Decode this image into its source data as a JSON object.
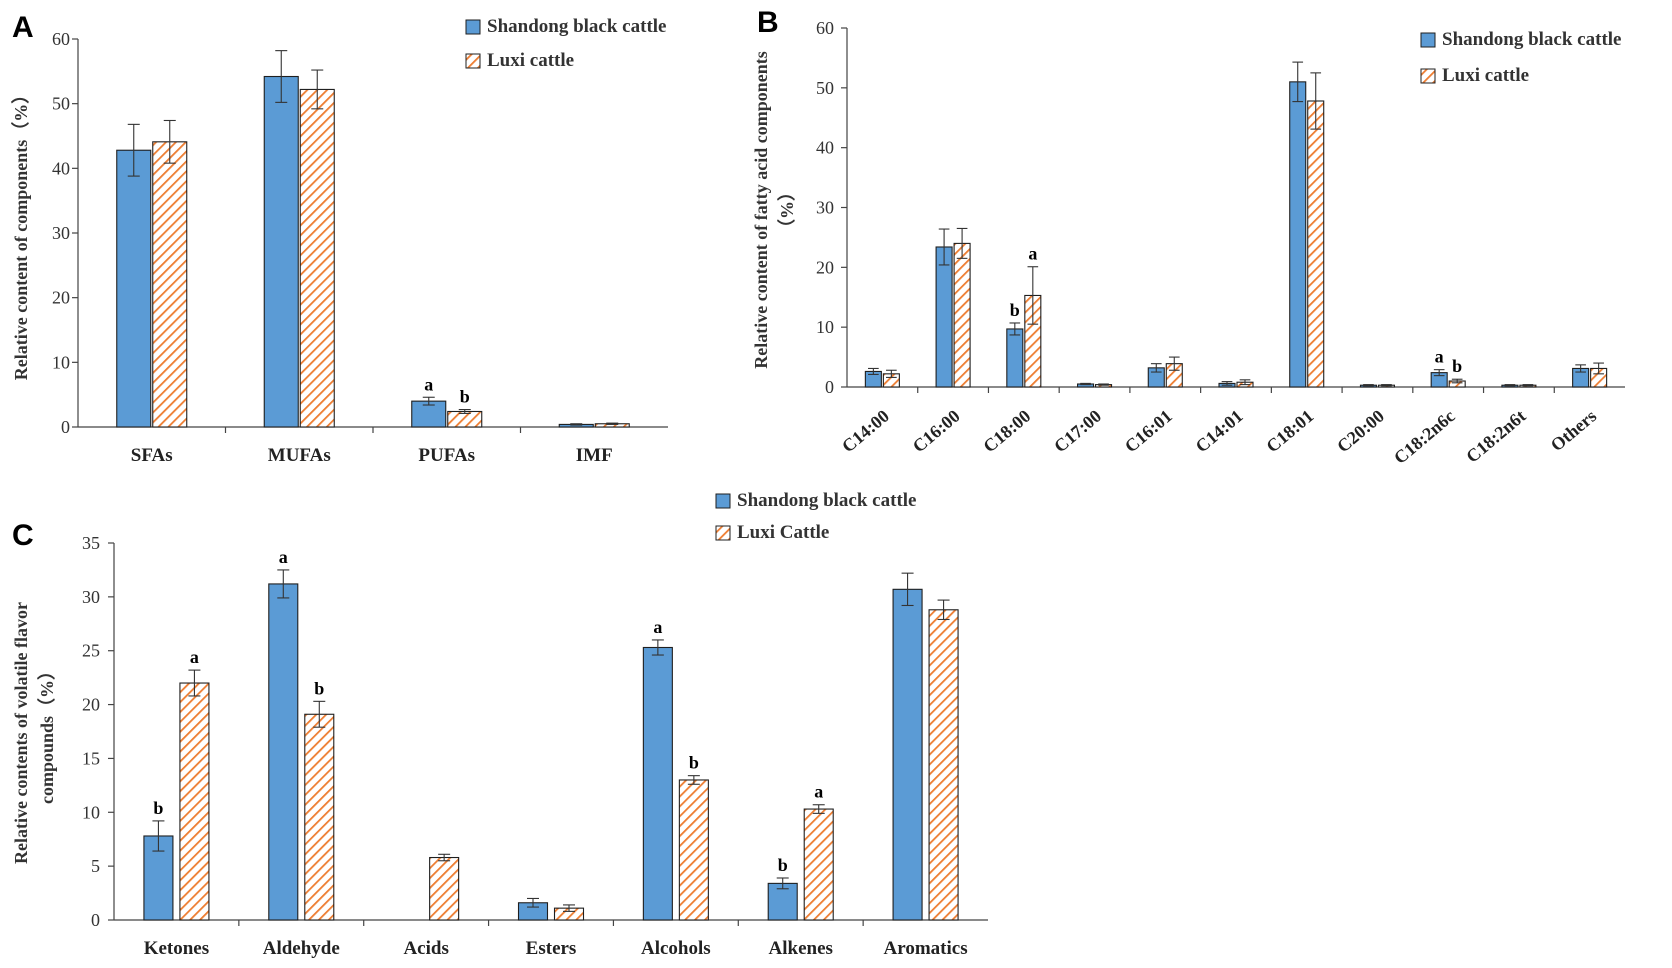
{
  "colors": {
    "series1": "#5b9bd5",
    "series1_edge": "#1f1f1f",
    "series2_stripe": "#ed7d31",
    "series2_bg": "#ffffff"
  },
  "chart_data": [
    {
      "panel": "A",
      "type": "bar",
      "title": "",
      "ylabel": "Relative content of components（%）",
      "ylim": [
        0,
        60
      ],
      "yticks": [
        "0",
        "10",
        "20",
        "30",
        "40",
        "50",
        "60"
      ],
      "categories": [
        "SFAs",
        "MUFAs",
        "PUFAs",
        "IMF"
      ],
      "legend": [
        "Shandong black cattle",
        "Luxi cattle"
      ],
      "series": [
        {
          "name": "Shandong black cattle",
          "values": [
            42.8,
            54.2,
            4.0,
            0.4
          ],
          "errors": [
            4.0,
            4.0,
            0.6,
            0.1
          ],
          "labels": [
            "",
            "",
            "a",
            ""
          ]
        },
        {
          "name": "Luxi cattle",
          "values": [
            44.1,
            52.2,
            2.4,
            0.5
          ],
          "errors": [
            3.3,
            3.0,
            0.3,
            0.1
          ],
          "labels": [
            "",
            "",
            "b",
            ""
          ]
        }
      ]
    },
    {
      "panel": "B",
      "type": "bar",
      "title": "",
      "ylabel": "Relative content of fatty acid components",
      "ylabel2": "（%）",
      "ylim": [
        0,
        60
      ],
      "yticks": [
        "0",
        "10",
        "20",
        "30",
        "40",
        "50",
        "60"
      ],
      "categories": [
        "C14:00",
        "C16:00",
        "C18:00",
        "C17:00",
        "C16:01",
        "C14:01",
        "C18:01",
        "C20:00",
        "C18:2n6c",
        "C18:2n6t",
        "Others"
      ],
      "legend": [
        "Shandong black cattle",
        "Luxi cattle"
      ],
      "series": [
        {
          "name": "Shandong black cattle",
          "values": [
            2.6,
            23.4,
            9.7,
            0.5,
            3.2,
            0.6,
            51.0,
            0.3,
            2.4,
            0.3,
            3.1
          ],
          "errors": [
            0.5,
            3.0,
            1.0,
            0.1,
            0.7,
            0.3,
            3.3,
            0.1,
            0.5,
            0.1,
            0.6
          ],
          "labels": [
            "",
            "",
            "b",
            "",
            "",
            "",
            "",
            "",
            "a",
            "",
            ""
          ]
        },
        {
          "name": "Luxi cattle",
          "values": [
            2.2,
            24.0,
            15.3,
            0.4,
            3.9,
            0.8,
            47.8,
            0.3,
            1.0,
            0.3,
            3.1
          ],
          "errors": [
            0.6,
            2.5,
            4.8,
            0.1,
            1.1,
            0.4,
            4.7,
            0.1,
            0.3,
            0.1,
            0.9
          ],
          "labels": [
            "",
            "",
            "a",
            "",
            "",
            "",
            "",
            "",
            "b",
            "",
            ""
          ]
        }
      ]
    },
    {
      "panel": "C",
      "type": "bar",
      "title": "",
      "ylabel": "Relative contents of volatile flavor",
      "ylabel2": "compounds（%）",
      "ylim": [
        0,
        35
      ],
      "yticks": [
        "0",
        "5",
        "10",
        "15",
        "20",
        "25",
        "30",
        "35"
      ],
      "categories": [
        "Ketones",
        "Aldehyde",
        "Acids",
        "Esters",
        "Alcohols",
        "Alkenes",
        "Aromatics"
      ],
      "legend": [
        "Shandong black cattle",
        "Luxi Cattle"
      ],
      "series": [
        {
          "name": "Shandong black cattle",
          "values": [
            7.8,
            31.2,
            0,
            1.6,
            25.3,
            3.4,
            30.7
          ],
          "errors": [
            1.4,
            1.3,
            0,
            0.4,
            0.7,
            0.5,
            1.5
          ],
          "labels": [
            "b",
            "a",
            "",
            "",
            "a",
            "b",
            ""
          ]
        },
        {
          "name": "Luxi Cattle",
          "values": [
            22.0,
            19.1,
            5.8,
            1.1,
            13.0,
            10.3,
            28.8
          ],
          "errors": [
            1.2,
            1.2,
            0.3,
            0.3,
            0.4,
            0.4,
            0.9
          ],
          "labels": [
            "a",
            "b",
            "",
            "",
            "b",
            "a",
            ""
          ]
        }
      ]
    }
  ]
}
